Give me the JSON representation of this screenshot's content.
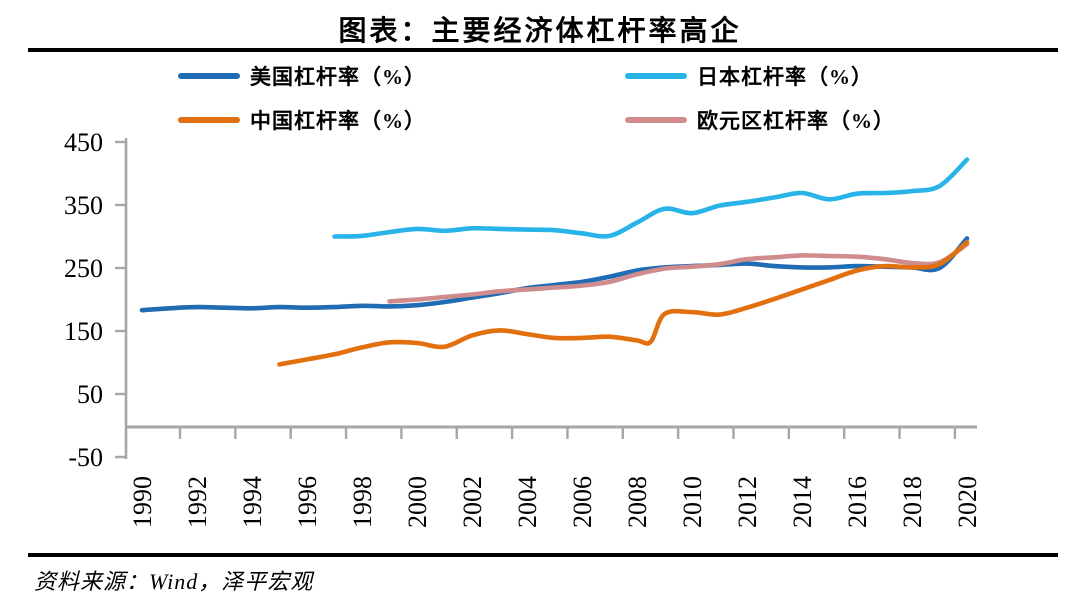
{
  "source_note": "资料来源：Wind，泽平宏观",
  "colors": {
    "axis": "#a6a6a6",
    "rule": "#000000",
    "text": "#000000"
  },
  "chart_data": {
    "type": "line",
    "title": "图表：主要经济体杠杆率高企",
    "legend_position": "top",
    "grid": false,
    "x_range": [
      1990,
      2020
    ],
    "y_range": [
      -50,
      450
    ],
    "y_ticks": [
      450,
      350,
      250,
      150,
      50,
      -50
    ],
    "x_tick_labels": [
      "1990",
      "1992",
      "1994",
      "1996",
      "1998",
      "2000",
      "2002",
      "2004",
      "2006",
      "2008",
      "2010",
      "2012",
      "2014",
      "2016",
      "2018",
      "2020"
    ],
    "series": [
      {
        "id": "us",
        "name": "美国杠杆率（%）",
        "color": "#1f6cb4",
        "x": [
          1990,
          1991,
          1992,
          1993,
          1994,
          1995,
          1996,
          1997,
          1998,
          1999,
          2000,
          2001,
          2002,
          2003,
          2004,
          2005,
          2006,
          2007,
          2008,
          2009,
          2010,
          2011,
          2012,
          2013,
          2014,
          2015,
          2016,
          2017,
          2018,
          2019,
          2020
        ],
        "values": [
          183,
          186,
          188,
          187,
          186,
          188,
          187,
          188,
          190,
          189,
          191,
          196,
          203,
          210,
          218,
          223,
          228,
          236,
          246,
          251,
          253,
          255,
          257,
          253,
          251,
          251,
          253,
          252,
          251,
          250,
          297
        ]
      },
      {
        "id": "japan",
        "name": "日本杠杆率（%）",
        "color": "#29b4e9",
        "x": [
          1997,
          1998,
          1999,
          2000,
          2001,
          2002,
          2003,
          2004,
          2005,
          2006,
          2007,
          2008,
          2009,
          2010,
          2011,
          2012,
          2013,
          2014,
          2015,
          2016,
          2017,
          2018,
          2019,
          2020
        ],
        "values": [
          300,
          301,
          307,
          312,
          309,
          313,
          312,
          311,
          310,
          305,
          301,
          322,
          344,
          337,
          349,
          355,
          362,
          369,
          359,
          368,
          369,
          372,
          380,
          422
        ]
      },
      {
        "id": "china",
        "name": "中国杠杆率（%）",
        "color": "#e3700f",
        "x": [
          1995,
          1996,
          1997,
          1998,
          1999,
          2000,
          2001,
          2002,
          2003,
          2004,
          2005,
          2006,
          2007,
          2008,
          2008.5,
          2009,
          2010,
          2011,
          2012,
          2013,
          2014,
          2015,
          2016,
          2017,
          2018,
          2019,
          2020
        ],
        "values": [
          97,
          105,
          113,
          124,
          132,
          131,
          125,
          143,
          151,
          145,
          139,
          139,
          141,
          135,
          133,
          177,
          180,
          176,
          187,
          201,
          216,
          231,
          246,
          253,
          251,
          256,
          291
        ]
      },
      {
        "id": "eurozone",
        "name": "欧元区杠杆率（%）",
        "color": "#d08c8c",
        "x": [
          1999,
          2000,
          2001,
          2002,
          2003,
          2004,
          2005,
          2006,
          2007,
          2008,
          2009,
          2010,
          2011,
          2012,
          2013,
          2014,
          2015,
          2016,
          2017,
          2018,
          2019,
          2020
        ],
        "values": [
          197,
          200,
          204,
          208,
          213,
          216,
          219,
          222,
          228,
          240,
          249,
          252,
          256,
          264,
          267,
          270,
          269,
          268,
          264,
          258,
          259,
          288
        ]
      }
    ]
  }
}
